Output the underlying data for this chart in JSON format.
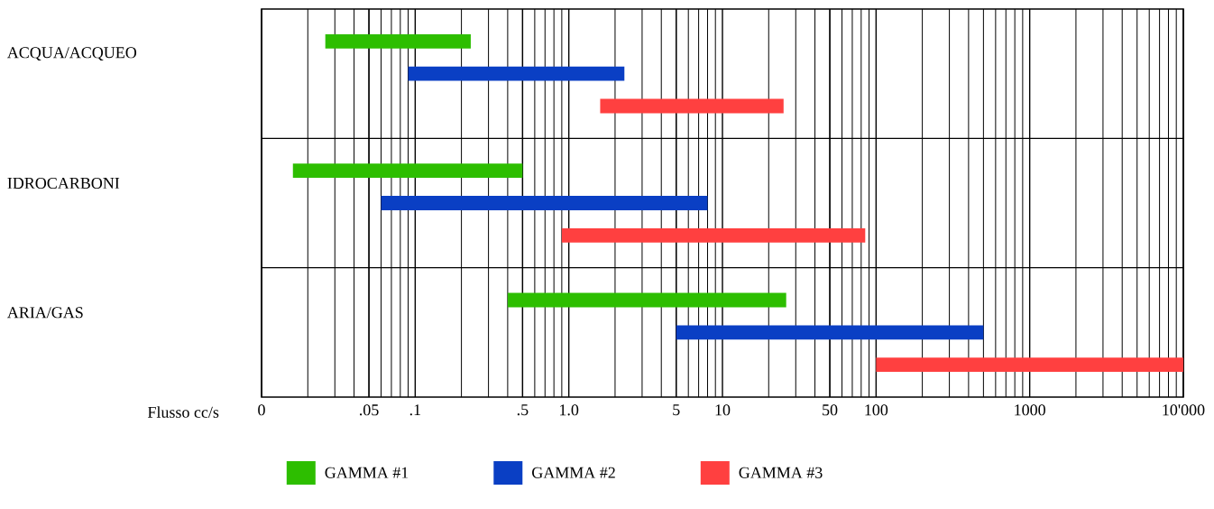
{
  "chart_data": {
    "type": "bar",
    "orientation": "horizontal",
    "log": "x",
    "grid": "x",
    "legend": "bottom",
    "xlabel": "Flusso cc/s",
    "categories": [
      "ACQUA/ACQUEO",
      "IDROCARBONI",
      "ARIA/GAS"
    ],
    "xlim": [
      0.01,
      10000
    ],
    "xticks": [
      {
        "value": 0.01,
        "label": "0"
      },
      {
        "value": 0.05,
        "label": ".05"
      },
      {
        "value": 0.1,
        "label": ".1"
      },
      {
        "value": 0.5,
        "label": ".5"
      },
      {
        "value": 1,
        "label": "1.0"
      },
      5,
      10,
      50,
      100,
      1000,
      {
        "value": 10000,
        "label": "10'000"
      }
    ],
    "series": [
      {
        "name": "GAMMA #1",
        "color": "#2dbe00",
        "base": [
          0.026,
          0.016,
          0.4
        ],
        "values": [
          0.204,
          0.484,
          25.6
        ]
      },
      {
        "name": "GAMMA #2",
        "color": "#0a3fc4",
        "base": [
          0.09,
          0.06,
          5
        ],
        "values": [
          2.21,
          7.94,
          495
        ]
      },
      {
        "name": "GAMMA #3",
        "color": "#ff4040",
        "base": [
          1.6,
          0.9,
          100
        ],
        "values": [
          23.4,
          84.1,
          9900
        ]
      }
    ]
  }
}
